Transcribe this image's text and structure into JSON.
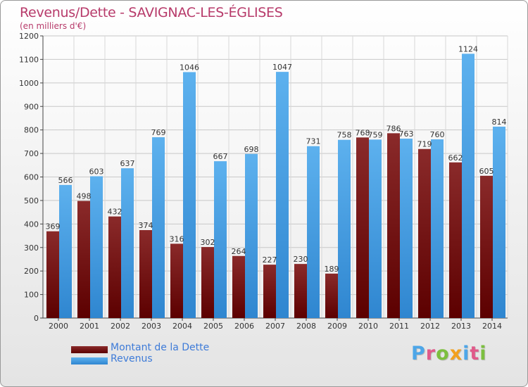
{
  "title": "Revenus/Dette - SAVIGNAC-LES-ÉGLISES",
  "unit_label": "(en milliers d'€)",
  "logo_text": "Proxiti",
  "logo_colors": [
    "#4da6e8",
    "#e05a8a",
    "#7cbf3f",
    "#f2a01e",
    "#4da6e8",
    "#e05a8a",
    "#7cbf3f"
  ],
  "legend": [
    {
      "label": "Montant de la Dette",
      "color": "#7a1616"
    },
    {
      "label": "Revenus",
      "color": "#3b95e0"
    }
  ],
  "chart_data": {
    "type": "bar",
    "categories": [
      "2000",
      "2001",
      "2002",
      "2003",
      "2004",
      "2005",
      "2006",
      "2007",
      "2008",
      "2009",
      "2010",
      "2011",
      "2012",
      "2013",
      "2014"
    ],
    "series": [
      {
        "name": "Montant de la Dette",
        "color": "#7a1616",
        "values": [
          369,
          498,
          432,
          374,
          316,
          302,
          264,
          227,
          230,
          189,
          768,
          786,
          719,
          662,
          605
        ]
      },
      {
        "name": "Revenus",
        "color": "#3b95e0",
        "values": [
          566,
          603,
          637,
          769,
          1046,
          667,
          698,
          1047,
          731,
          758,
          759,
          763,
          760,
          1124,
          814
        ]
      }
    ],
    "ylim": [
      0,
      1200
    ],
    "yticks": [
      0,
      100,
      200,
      300,
      400,
      500,
      600,
      700,
      800,
      900,
      1000,
      1100,
      1200
    ],
    "grid": true
  }
}
